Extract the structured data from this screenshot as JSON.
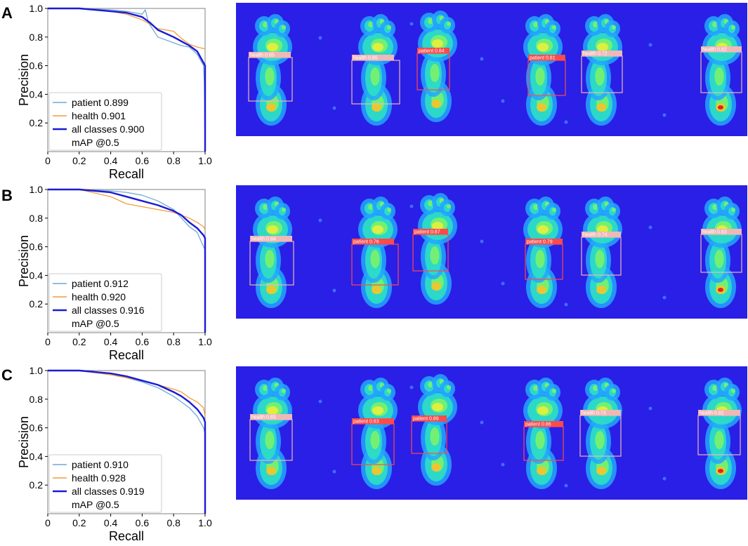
{
  "panels": [
    {
      "letter": "A",
      "chart_data": {
        "type": "line",
        "xlabel": "Recall",
        "ylabel": "Precision",
        "xlim": [
          0,
          1.0
        ],
        "ylim": [
          0.0,
          1.0
        ],
        "xticks": [
          "0",
          "0.2",
          "0.4",
          "0.6",
          "0.8",
          "1.0"
        ],
        "yticks": [
          "0.2",
          "0.4",
          "0.6",
          "0.8",
          "1.0"
        ],
        "legend_position": "bottom-left",
        "legend_note": "mAP @0.5",
        "series": [
          {
            "name": "patient 0.899",
            "color": "#6fa8d6",
            "x": [
              0,
              0.2,
              0.4,
              0.5,
              0.6,
              0.62,
              0.64,
              0.7,
              0.8,
              0.85,
              0.9,
              0.95,
              0.99,
              0.995,
              1.0
            ],
            "y": [
              1.0,
              1.0,
              0.99,
              0.98,
              0.96,
              0.99,
              0.9,
              0.8,
              0.76,
              0.74,
              0.73,
              0.68,
              0.6,
              0.48,
              0.0
            ]
          },
          {
            "name": "health 0.901",
            "color": "#f39c3a",
            "x": [
              0,
              0.2,
              0.4,
              0.5,
              0.6,
              0.65,
              0.7,
              0.8,
              0.85,
              0.9,
              0.95,
              0.99,
              1.0
            ],
            "y": [
              1.0,
              1.0,
              0.98,
              0.96,
              0.92,
              0.89,
              0.86,
              0.84,
              0.79,
              0.75,
              0.73,
              0.72,
              0.72
            ]
          },
          {
            "name": "all classes 0.900",
            "color": "#1a1ad6",
            "x": [
              0,
              0.2,
              0.4,
              0.5,
              0.6,
              0.65,
              0.7,
              0.8,
              0.85,
              0.9,
              0.95,
              0.99,
              1.0,
              1.0
            ],
            "y": [
              1.0,
              1.0,
              0.98,
              0.97,
              0.94,
              0.9,
              0.85,
              0.8,
              0.77,
              0.74,
              0.7,
              0.62,
              0.6,
              0.0
            ]
          }
        ]
      },
      "boxes": [
        {
          "label": "health 0.85",
          "color": "#f0b7b7"
        },
        {
          "label": "health 0.85",
          "color": "#f0b7b7"
        },
        {
          "label": "patient 0.84",
          "color": "#ff4a4a"
        },
        {
          "label": "patient 0.81",
          "color": "#ff4a4a"
        },
        {
          "label": "health 0.72",
          "color": "#f0b7b7"
        },
        {
          "label": "health 0.82",
          "color": "#f0b7b7"
        }
      ]
    },
    {
      "letter": "B",
      "chart_data": {
        "type": "line",
        "xlabel": "Recall",
        "ylabel": "Precision",
        "xlim": [
          0,
          1.0
        ],
        "ylim": [
          0.0,
          1.0
        ],
        "xticks": [
          "0",
          "0.2",
          "0.4",
          "0.6",
          "0.8",
          "1.0"
        ],
        "yticks": [
          "0.2",
          "0.4",
          "0.6",
          "0.8",
          "1.0"
        ],
        "legend_position": "bottom-left",
        "legend_note": "mAP @0.5",
        "series": [
          {
            "name": "patient 0.912",
            "color": "#6fa8d6",
            "x": [
              0,
              0.2,
              0.4,
              0.5,
              0.6,
              0.7,
              0.8,
              0.85,
              0.9,
              0.95,
              0.99,
              1.0
            ],
            "y": [
              1.0,
              1.0,
              0.99,
              0.98,
              0.96,
              0.92,
              0.86,
              0.8,
              0.74,
              0.7,
              0.6,
              0.58
            ]
          },
          {
            "name": "health 0.920",
            "color": "#f39c3a",
            "x": [
              0,
              0.2,
              0.4,
              0.5,
              0.6,
              0.7,
              0.8,
              0.85,
              0.9,
              0.95,
              0.99,
              1.0
            ],
            "y": [
              1.0,
              1.0,
              0.95,
              0.9,
              0.88,
              0.86,
              0.84,
              0.82,
              0.8,
              0.77,
              0.74,
              0.72
            ]
          },
          {
            "name": "all classes 0.916",
            "color": "#1a1ad6",
            "x": [
              0,
              0.2,
              0.4,
              0.5,
              0.6,
              0.7,
              0.8,
              0.85,
              0.9,
              0.95,
              0.99,
              1.0,
              1.0
            ],
            "y": [
              1.0,
              1.0,
              0.98,
              0.95,
              0.92,
              0.89,
              0.85,
              0.82,
              0.77,
              0.73,
              0.68,
              0.66,
              0.0
            ]
          }
        ]
      },
      "boxes": [
        {
          "label": "health 0.84",
          "color": "#f0b7b7"
        },
        {
          "label": "patient 0.76",
          "color": "#ff4a4a"
        },
        {
          "label": "patient 0.87",
          "color": "#ff4a4a"
        },
        {
          "label": "patient 0.79",
          "color": "#ff4a4a"
        },
        {
          "label": "health 0.74",
          "color": "#f0b7b7"
        },
        {
          "label": "health 0.83",
          "color": "#f0b7b7"
        }
      ]
    },
    {
      "letter": "C",
      "chart_data": {
        "type": "line",
        "xlabel": "Recall",
        "ylabel": "Precision",
        "xlim": [
          0,
          1.0
        ],
        "ylim": [
          0.0,
          1.0
        ],
        "xticks": [
          "0",
          "0.2",
          "0.4",
          "0.6",
          "0.8",
          "1.0"
        ],
        "yticks": [
          "0.2",
          "0.4",
          "0.6",
          "0.8",
          "1.0"
        ],
        "legend_position": "bottom-left",
        "legend_note": "mAP @0.5",
        "series": [
          {
            "name": "patient 0.910",
            "color": "#6fa8d6",
            "x": [
              0,
              0.2,
              0.4,
              0.5,
              0.6,
              0.7,
              0.8,
              0.85,
              0.9,
              0.95,
              0.99,
              1.0
            ],
            "y": [
              1.0,
              1.0,
              0.98,
              0.95,
              0.92,
              0.88,
              0.82,
              0.78,
              0.74,
              0.68,
              0.6,
              0.56
            ]
          },
          {
            "name": "health 0.928",
            "color": "#f39c3a",
            "x": [
              0,
              0.2,
              0.4,
              0.5,
              0.6,
              0.7,
              0.8,
              0.85,
              0.9,
              0.95,
              0.99,
              1.0
            ],
            "y": [
              1.0,
              1.0,
              0.97,
              0.95,
              0.93,
              0.9,
              0.87,
              0.85,
              0.81,
              0.78,
              0.74,
              0.68
            ]
          },
          {
            "name": "all classes 0.919",
            "color": "#1a1ad6",
            "x": [
              0,
              0.2,
              0.4,
              0.5,
              0.6,
              0.7,
              0.8,
              0.85,
              0.9,
              0.95,
              0.99,
              1.0,
              1.0
            ],
            "y": [
              1.0,
              1.0,
              0.98,
              0.96,
              0.93,
              0.9,
              0.85,
              0.82,
              0.78,
              0.73,
              0.67,
              0.64,
              0.0
            ]
          }
        ]
      },
      "boxes": [
        {
          "label": "health 0.83",
          "color": "#f0b7b7"
        },
        {
          "label": "patient 0.83",
          "color": "#ff4a4a"
        },
        {
          "label": "patient 0.89",
          "color": "#ff4a4a"
        },
        {
          "label": "patient 0.86",
          "color": "#ff4a4a"
        },
        {
          "label": "health 0.73",
          "color": "#f0b7b7"
        },
        {
          "label": "health 0.82",
          "color": "#f0b7b7"
        }
      ]
    }
  ],
  "colors": {
    "heatmap_background": "#2a1fe6",
    "plot_frame": "#808080"
  }
}
